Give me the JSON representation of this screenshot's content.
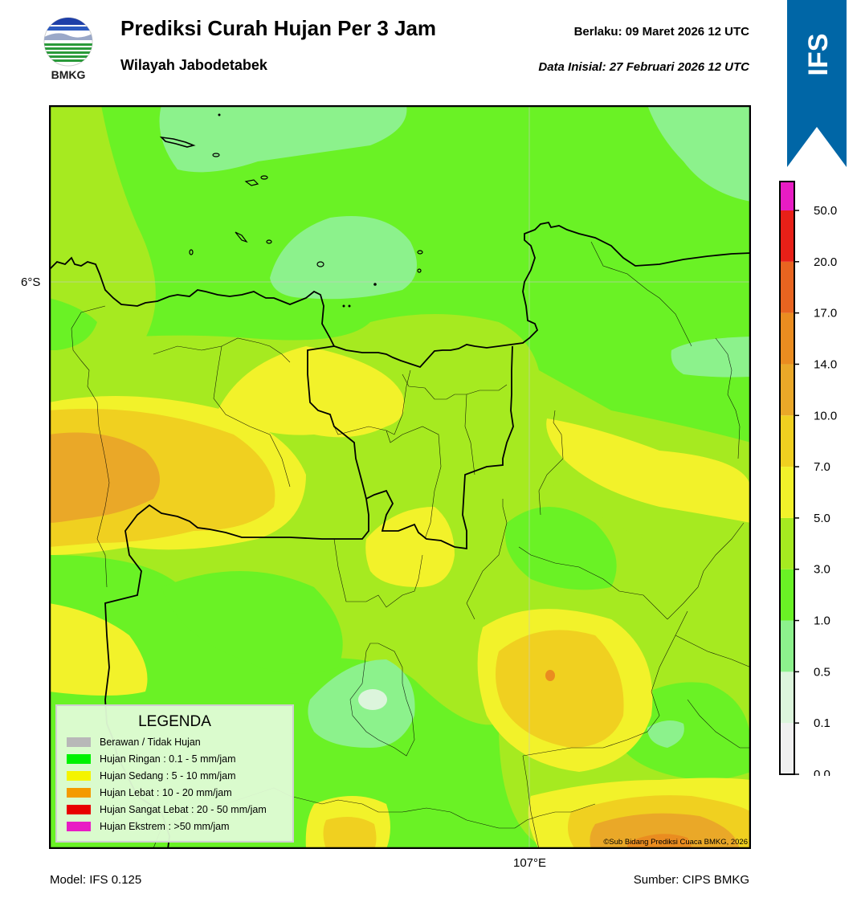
{
  "header": {
    "title": "Prediksi Curah Hujan Per 3 Jam",
    "subtitle": "Wilayah Jabodetabek",
    "valid_label": "Berlaku:  09 Maret 2026 12 UTC",
    "init_label": "Data Inisial:  27 Februari 2026 12 UTC"
  },
  "logo": {
    "text": "BMKG",
    "icon": "bmkg-logo"
  },
  "ribbon": {
    "text": "IFS",
    "color": "#0066a6"
  },
  "map": {
    "lat_label": "6°S",
    "lon_label": "107°E",
    "copyright": "©Sub Bidang Prediksi Cuaca BMKG, 2026"
  },
  "legend": {
    "title": "LEGENDA",
    "items": [
      {
        "label": "Berawan / Tidak Hujan",
        "color": "#b8b8b8"
      },
      {
        "label": "Hujan Ringan : 0.1 - 5 mm/jam",
        "color": "#00f200"
      },
      {
        "label": "Hujan Sedang : 5 - 10 mm/jam",
        "color": "#f4f400"
      },
      {
        "label": "Hujan Lebat : 10 - 20 mm/jam",
        "color": "#f49a00"
      },
      {
        "label": "Hujan Sangat Lebat : 20 - 50 mm/jam",
        "color": "#e80000"
      },
      {
        "label": "Hujan Ekstrem : >50 mm/jam",
        "color": "#e81cc4"
      }
    ]
  },
  "colorbar": {
    "labels": [
      "0.0",
      "0.1",
      "0.5",
      "1.0",
      "3.0",
      "5.0",
      "7.0",
      "10.0",
      "14.0",
      "17.0",
      "20.0",
      "50.0"
    ],
    "colors": [
      "#f0f0f0",
      "#dcf5dc",
      "#8cf28c",
      "#6af225",
      "#a6ea20",
      "#f2f22a",
      "#f0d020",
      "#eaa828",
      "#ea8c20",
      "#e86420",
      "#e82018",
      "#e81cc4"
    ]
  },
  "footer": {
    "model": "Model: IFS 0.125",
    "source": "Sumber: CIPS BMKG"
  }
}
